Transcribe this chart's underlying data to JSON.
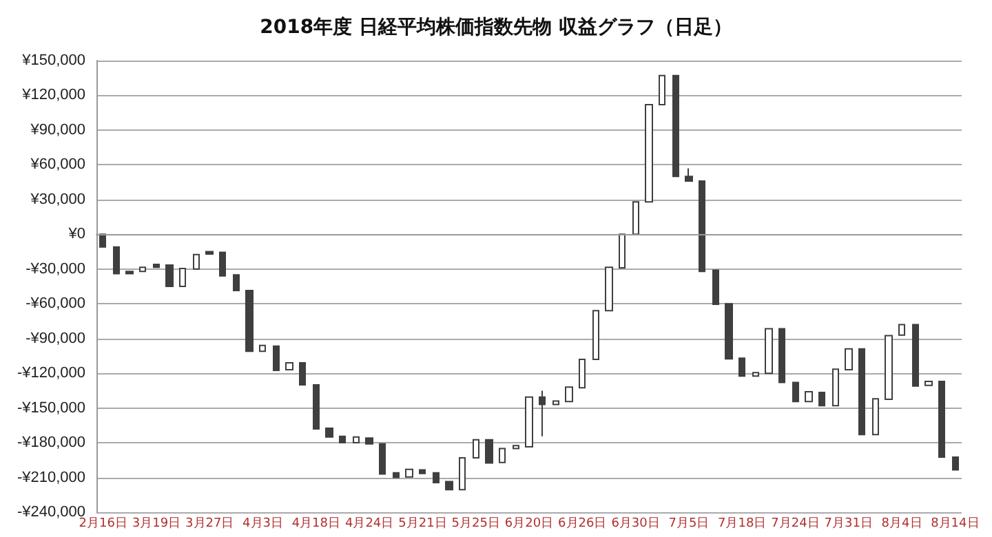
{
  "chart_data": {
    "type": "candlestick",
    "title": "2018年度 日経平均株価指数先物 収益グラフ（日足）",
    "categories": [
      "2月16日",
      null,
      null,
      null,
      "3月19日",
      null,
      null,
      null,
      "3月27日",
      null,
      null,
      null,
      "4月3日",
      null,
      null,
      null,
      "4月18日",
      null,
      null,
      null,
      "4月24日",
      null,
      null,
      null,
      "5月21日",
      null,
      null,
      null,
      "5月25日",
      null,
      null,
      null,
      "6月20日",
      null,
      null,
      null,
      "6月26日",
      null,
      null,
      null,
      "6月30日",
      null,
      null,
      null,
      "7月5日",
      null,
      null,
      null,
      "7月18日",
      null,
      null,
      null,
      "7月24日",
      null,
      null,
      null,
      "7月31日",
      null,
      null,
      null,
      "8月4日",
      null,
      null,
      null,
      "8月14日"
    ],
    "ohlc": [
      [
        0,
        0,
        -11000,
        -11000
      ],
      [
        -11000,
        -11000,
        -34000,
        -34000
      ],
      [
        -32000,
        -32000,
        -34000,
        -34000
      ],
      [
        -32000,
        -28500,
        -32000,
        -28500
      ],
      [
        -26000,
        -26000,
        -28500,
        -28500
      ],
      [
        -26500,
        -26500,
        -45000,
        -45000
      ],
      [
        -45000,
        -29500,
        -45000,
        -29500
      ],
      [
        -30000,
        -17500,
        -30000,
        -17500
      ],
      [
        -15000,
        -15000,
        -17000,
        -17000
      ],
      [
        -15500,
        -15500,
        -36000,
        -36000
      ],
      [
        -35000,
        -35000,
        -48500,
        -48500
      ],
      [
        -48500,
        -48500,
        -101000,
        -101000
      ],
      [
        -101000,
        -96000,
        -101000,
        -96000
      ],
      [
        -96500,
        -96500,
        -117500,
        -117500
      ],
      [
        -117000,
        -111000,
        -117000,
        -111000
      ],
      [
        -111000,
        -111000,
        -130000,
        -130000
      ],
      [
        -130000,
        -130000,
        -168000,
        -168000
      ],
      [
        -167500,
        -167500,
        -175000,
        -175000
      ],
      [
        -174500,
        -174500,
        -180000,
        -180000
      ],
      [
        -180000,
        -175000,
        -180000,
        -175000
      ],
      [
        -176000,
        -176000,
        -181000,
        -181000
      ],
      [
        -181000,
        -181000,
        -207000,
        -207000
      ],
      [
        -206000,
        -206000,
        -210000,
        -210000
      ],
      [
        -209500,
        -203000,
        -209500,
        -203000
      ],
      [
        -203500,
        -203500,
        -206500,
        -206500
      ],
      [
        -206000,
        -206000,
        -214500,
        -214500
      ],
      [
        -213500,
        -213500,
        -220500,
        -220500
      ],
      [
        -220500,
        -193000,
        -220500,
        -193000
      ],
      [
        -193000,
        -177500,
        -193000,
        -177500
      ],
      [
        -177500,
        -177500,
        -197500,
        -197500
      ],
      [
        -197000,
        -185000,
        -197000,
        -185000
      ],
      [
        -185000,
        -182500,
        -185000,
        -182500
      ],
      [
        -183500,
        -140500,
        -183500,
        -140500
      ],
      [
        -140500,
        -135000,
        -174500,
        -147000
      ],
      [
        -147000,
        -144000,
        -147000,
        -144000
      ],
      [
        -144500,
        -132000,
        -144500,
        -132000
      ],
      [
        -132500,
        -108000,
        -132500,
        -108000
      ],
      [
        -108000,
        -66000,
        -108000,
        -66000
      ],
      [
        -66000,
        -28500,
        -66000,
        -28500
      ],
      [
        -29000,
        0,
        -29000,
        0
      ],
      [
        0,
        28000,
        0,
        28000
      ],
      [
        28000,
        112000,
        28000,
        112000
      ],
      [
        112000,
        137000,
        112000,
        137000
      ],
      [
        137000,
        137000,
        50000,
        50000
      ],
      [
        50000,
        57000,
        46000,
        46000
      ],
      [
        46000,
        46000,
        -32000,
        -32000
      ],
      [
        -31000,
        -31000,
        -60500,
        -60500
      ],
      [
        -60000,
        -60000,
        -107500,
        -107500
      ],
      [
        -107000,
        -107000,
        -122500,
        -122500
      ],
      [
        -122500,
        -119500,
        -122500,
        -119500
      ],
      [
        -120000,
        -81500,
        -120000,
        -81500
      ],
      [
        -81500,
        -81500,
        -128000,
        -128000
      ],
      [
        -128000,
        -128000,
        -144500,
        -144500
      ],
      [
        -144500,
        -136000,
        -144500,
        -136000
      ],
      [
        -136500,
        -136500,
        -148000,
        -148000
      ],
      [
        -148000,
        -116500,
        -148000,
        -116500
      ],
      [
        -117000,
        -99000,
        -117000,
        -99000
      ],
      [
        -99000,
        -99000,
        -173000,
        -173000
      ],
      [
        -173000,
        -142000,
        -173000,
        -142000
      ],
      [
        -142500,
        -87500,
        -142500,
        -87500
      ],
      [
        -87000,
        -78000,
        -87000,
        -78000
      ],
      [
        -78000,
        -78000,
        -131000,
        -131000
      ],
      [
        -130500,
        -127000,
        -130500,
        -127000
      ],
      [
        -127000,
        -127000,
        -192500,
        -192500
      ],
      [
        -192500,
        -192500,
        -203500,
        -203500
      ]
    ],
    "color": "#3f3f3f",
    "ylim": [
      -240000,
      150000
    ],
    "yticks": [
      {
        "value": -240000,
        "label": "-¥240,000"
      },
      {
        "value": -210000,
        "label": "-¥210,000"
      },
      {
        "value": -180000,
        "label": "-¥180,000"
      },
      {
        "value": -150000,
        "label": "-¥150,000"
      },
      {
        "value": -120000,
        "label": "-¥120,000"
      },
      {
        "value": -90000,
        "label": "-¥90,000"
      },
      {
        "value": -60000,
        "label": "-¥60,000"
      },
      {
        "value": -30000,
        "label": "-¥30,000"
      },
      {
        "value": 0,
        "label": "¥0"
      },
      {
        "value": 30000,
        "label": "¥30,000"
      },
      {
        "value": 60000,
        "label": "¥60,000"
      },
      {
        "value": 90000,
        "label": "¥90,000"
      },
      {
        "value": 120000,
        "label": "¥120,000"
      },
      {
        "value": 150000,
        "label": "¥150,000"
      }
    ],
    "grid": true
  }
}
